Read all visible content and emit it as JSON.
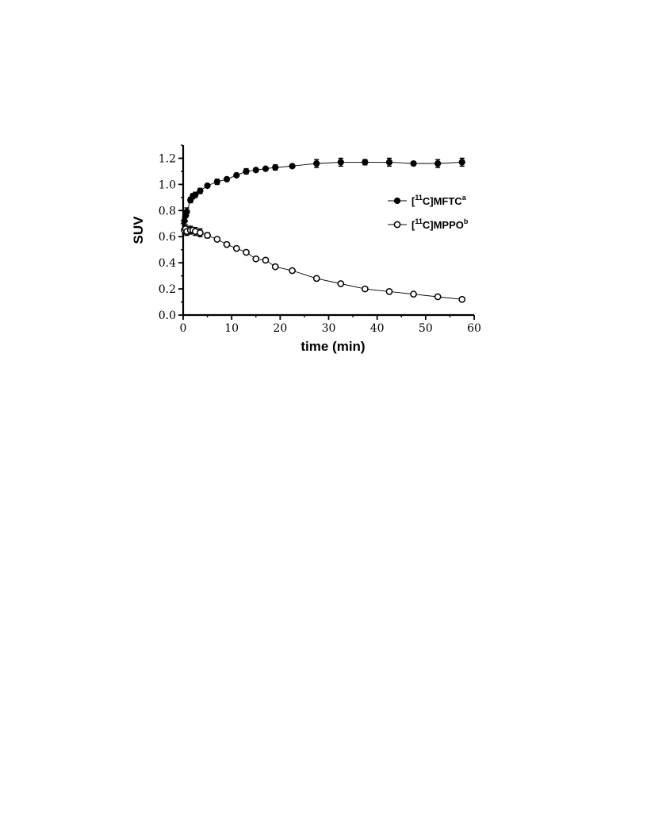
{
  "chart_data": {
    "type": "scatter",
    "xlabel": "time (min)",
    "ylabel": "SUV",
    "xlim": [
      0,
      60
    ],
    "ylim": [
      0,
      1.3
    ],
    "xticks": [
      "0",
      "10",
      "20",
      "30",
      "40",
      "50",
      "60"
    ],
    "yticks": [
      "0.0",
      "0.2",
      "0.4",
      "0.6",
      "0.8",
      "1.0",
      "1.2"
    ],
    "xtick_values": [
      0,
      10,
      20,
      30,
      40,
      50,
      60
    ],
    "ytick_values": [
      0,
      0.2,
      0.4,
      0.6,
      0.8,
      1.0,
      1.2
    ],
    "grid": false,
    "legend_position": "right",
    "series": [
      {
        "name": "MFTC",
        "label_prefix": "[",
        "label_sup1": "11",
        "label_main": "C]MFTC",
        "label_sup2": "a",
        "marker": "filled-circle",
        "color": "#000000",
        "points": [
          {
            "x": 0.25,
            "y": 0.72,
            "err": 0.03
          },
          {
            "x": 0.5,
            "y": 0.76,
            "err": 0.04
          },
          {
            "x": 0.75,
            "y": 0.79,
            "err": 0.03
          },
          {
            "x": 1.5,
            "y": 0.88,
            "err": 0.02
          },
          {
            "x": 2.0,
            "y": 0.91,
            "err": 0.02
          },
          {
            "x": 2.5,
            "y": 0.92,
            "err": 0.02
          },
          {
            "x": 3.5,
            "y": 0.95,
            "err": 0.02
          },
          {
            "x": 5.0,
            "y": 0.99,
            "err": 0.01
          },
          {
            "x": 7.0,
            "y": 1.02,
            "err": 0.02
          },
          {
            "x": 9.0,
            "y": 1.04,
            "err": 0.01
          },
          {
            "x": 11.0,
            "y": 1.07,
            "err": 0.01
          },
          {
            "x": 13.0,
            "y": 1.1,
            "err": 0.02
          },
          {
            "x": 15.0,
            "y": 1.11,
            "err": 0.01
          },
          {
            "x": 17.0,
            "y": 1.12,
            "err": 0.01
          },
          {
            "x": 19.0,
            "y": 1.13,
            "err": 0.02
          },
          {
            "x": 22.5,
            "y": 1.14,
            "err": 0.01
          },
          {
            "x": 27.5,
            "y": 1.16,
            "err": 0.03
          },
          {
            "x": 32.5,
            "y": 1.17,
            "err": 0.03
          },
          {
            "x": 37.5,
            "y": 1.17,
            "err": 0.02
          },
          {
            "x": 42.5,
            "y": 1.17,
            "err": 0.03
          },
          {
            "x": 47.5,
            "y": 1.16,
            "err": 0.01
          },
          {
            "x": 52.5,
            "y": 1.16,
            "err": 0.03
          },
          {
            "x": 57.5,
            "y": 1.17,
            "err": 0.03
          }
        ]
      },
      {
        "name": "MPPO",
        "label_prefix": "[",
        "label_sup1": "11",
        "label_main": "C]MPPO",
        "label_sup2": "b",
        "marker": "open-circle",
        "color": "#000000",
        "points": [
          {
            "x": 0.25,
            "y": 0.65,
            "err": 0.03
          },
          {
            "x": 0.5,
            "y": 0.66,
            "err": 0.03
          },
          {
            "x": 0.75,
            "y": 0.64,
            "err": 0.03
          },
          {
            "x": 1.5,
            "y": 0.65,
            "err": 0.03
          },
          {
            "x": 2.0,
            "y": 0.65,
            "err": 0.02
          },
          {
            "x": 2.5,
            "y": 0.64,
            "err": 0.03
          },
          {
            "x": 3.5,
            "y": 0.63,
            "err": 0.03
          },
          {
            "x": 5.0,
            "y": 0.61,
            "err": 0.02
          },
          {
            "x": 7.0,
            "y": 0.58,
            "err": 0.01
          },
          {
            "x": 9.0,
            "y": 0.54,
            "err": 0.01
          },
          {
            "x": 11.0,
            "y": 0.51,
            "err": 0.01
          },
          {
            "x": 13.0,
            "y": 0.48,
            "err": 0.01
          },
          {
            "x": 15.0,
            "y": 0.43,
            "err": 0.01
          },
          {
            "x": 17.0,
            "y": 0.42,
            "err": 0.01
          },
          {
            "x": 19.0,
            "y": 0.37,
            "err": 0.01
          },
          {
            "x": 22.5,
            "y": 0.34,
            "err": 0.01
          },
          {
            "x": 27.5,
            "y": 0.28,
            "err": 0.01
          },
          {
            "x": 32.5,
            "y": 0.24,
            "err": 0.01
          },
          {
            "x": 37.5,
            "y": 0.2,
            "err": 0.01
          },
          {
            "x": 42.5,
            "y": 0.18,
            "err": 0.01
          },
          {
            "x": 47.5,
            "y": 0.16,
            "err": 0.01
          },
          {
            "x": 52.5,
            "y": 0.14,
            "err": 0.01
          },
          {
            "x": 57.5,
            "y": 0.12,
            "err": 0.01
          }
        ]
      }
    ]
  }
}
